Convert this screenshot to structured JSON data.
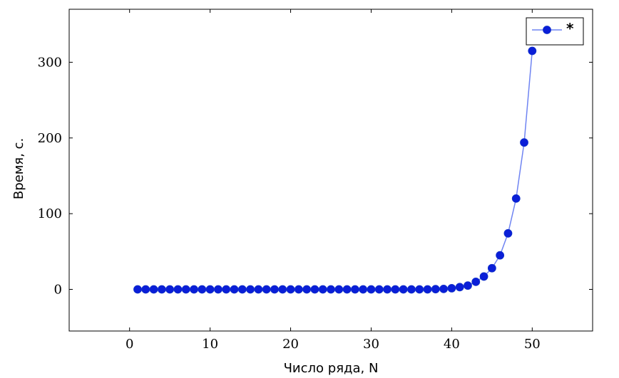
{
  "chart_data": {
    "type": "line",
    "title": "",
    "xlabel": "Число ряда, N",
    "ylabel": "Время, с.",
    "xlim": [
      -7.5,
      57.5
    ],
    "ylim": [
      -55,
      370
    ],
    "xticks": [
      0,
      10,
      20,
      30,
      40,
      50
    ],
    "yticks": [
      0,
      100,
      200,
      300
    ],
    "grid": false,
    "legend_position": "top-right",
    "colors": {
      "line": "#6f84f2",
      "marker": "#0a1ed8"
    },
    "series": [
      {
        "name": "*",
        "x": [
          1,
          2,
          3,
          4,
          5,
          6,
          7,
          8,
          9,
          10,
          11,
          12,
          13,
          14,
          15,
          16,
          17,
          18,
          19,
          20,
          21,
          22,
          23,
          24,
          25,
          26,
          27,
          28,
          29,
          30,
          31,
          32,
          33,
          34,
          35,
          36,
          37,
          38,
          39,
          40,
          41,
          42,
          43,
          44,
          45,
          46,
          47,
          48,
          49,
          50
        ],
        "y": [
          0,
          0,
          0,
          0,
          0,
          0,
          0,
          0,
          0,
          0,
          0,
          0,
          0,
          0,
          0,
          0,
          0,
          0,
          0,
          0,
          0,
          0,
          0,
          0,
          0,
          0,
          0,
          0,
          0,
          0,
          0,
          0,
          0,
          0,
          0,
          0,
          0,
          0.3,
          0.6,
          1.5,
          3,
          5,
          10,
          17,
          28,
          45,
          74,
          120,
          194,
          315
        ]
      }
    ]
  }
}
